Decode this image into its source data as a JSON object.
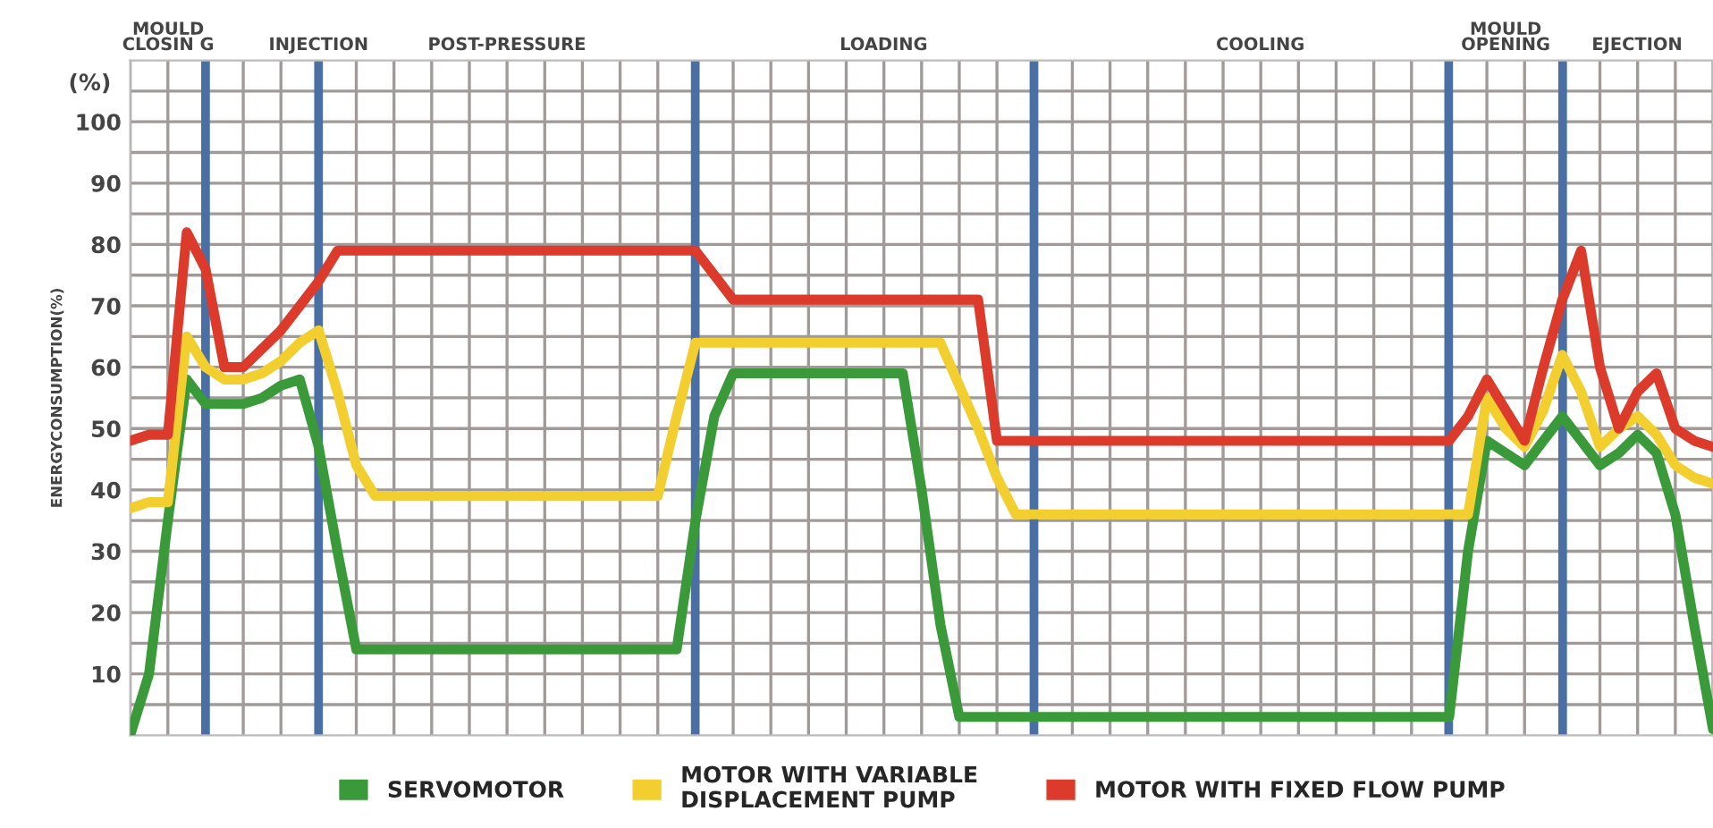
{
  "chart_data": {
    "type": "line",
    "ylabel": "ENERGYCONSUMPTION(%)",
    "annotations": [
      "(%)",
      "MOULD\nCLOSIN G",
      "INJECTION",
      "POST-PRESSURE",
      "LOADING",
      "COOLING",
      "MOULD\nOPENING",
      "EJECTION"
    ],
    "categories": [
      null,
      null,
      null,
      null,
      null,
      null,
      null,
      null,
      null,
      null,
      null,
      null,
      null,
      null,
      null,
      null,
      null,
      null,
      null,
      null,
      null,
      null,
      null,
      null,
      null,
      null,
      null,
      null,
      null,
      null,
      null,
      null,
      null,
      null,
      null,
      null,
      null,
      null,
      null,
      null,
      null,
      null,
      null,
      null,
      null,
      null,
      null,
      null,
      null,
      null,
      null,
      null,
      null,
      null,
      null,
      null,
      null,
      null,
      null,
      null,
      null,
      null,
      null,
      null,
      null,
      null,
      null,
      null,
      null,
      null,
      null,
      null,
      null,
      null,
      null,
      null,
      null,
      null,
      null,
      null,
      null,
      null,
      null,
      null,
      null
    ],
    "ylim": [
      0,
      110
    ],
    "yticks": [
      {
        "value": 5,
        "label": null
      },
      10,
      {
        "value": 15,
        "label": null
      },
      20,
      {
        "value": 25,
        "label": null
      },
      30,
      {
        "value": 35,
        "label": null
      },
      40,
      {
        "value": 45,
        "label": null
      },
      50,
      {
        "value": 55,
        "label": null
      },
      60,
      {
        "value": 65,
        "label": null
      },
      70,
      {
        "value": 75,
        "label": null
      },
      80,
      {
        "value": 85,
        "label": null
      },
      90,
      {
        "value": 95,
        "label": null
      },
      100,
      {
        "value": 105,
        "label": null
      }
    ],
    "grid": true,
    "legend": "bottom",
    "marker": "none",
    "line_style": "solid",
    "series": [
      {
        "name": "SERVOMOTOR",
        "color": "#3a9a3a",
        "values": [
          0,
          10,
          35,
          58,
          54,
          54,
          54,
          55,
          57,
          58,
          47,
          30,
          14,
          14,
          14,
          14,
          14,
          14,
          14,
          14,
          14,
          14,
          14,
          14,
          14,
          14,
          14,
          14,
          14,
          14,
          35,
          52,
          59,
          59,
          59,
          59,
          59,
          59,
          59,
          59,
          59,
          59,
          40,
          18,
          3,
          3,
          3,
          3,
          3,
          3,
          3,
          3,
          3,
          3,
          3,
          3,
          3,
          3,
          3,
          3,
          3,
          3,
          3,
          3,
          3,
          3,
          3,
          3,
          3,
          3,
          3,
          30,
          48,
          46,
          44,
          48,
          52,
          48,
          44,
          46,
          49,
          46,
          36,
          18,
          1
        ]
      },
      {
        "name": "MOTOR WITH VARIABLE\nDISPLACEMENT PUMP",
        "color": "#f2cf2e",
        "values": [
          37,
          38,
          38,
          65,
          60,
          58,
          58,
          59,
          61,
          64,
          66,
          56,
          44,
          39,
          39,
          39,
          39,
          39,
          39,
          39,
          39,
          39,
          39,
          39,
          39,
          39,
          39,
          39,
          39,
          52,
          64,
          64,
          64,
          64,
          64,
          64,
          64,
          64,
          64,
          64,
          64,
          64,
          64,
          64,
          57,
          50,
          42,
          36,
          36,
          36,
          36,
          36,
          36,
          36,
          36,
          36,
          36,
          36,
          36,
          36,
          36,
          36,
          36,
          36,
          36,
          36,
          36,
          36,
          36,
          36,
          36,
          36,
          55,
          50,
          47,
          53,
          62,
          56,
          47,
          50,
          52,
          49,
          44,
          42,
          41
        ]
      },
      {
        "name": "MOTOR WITH FIXED FLOW PUMP",
        "color": "#dc3a2b",
        "values": [
          48,
          49,
          49,
          82,
          76,
          60,
          60,
          63,
          66,
          70,
          74,
          79,
          79,
          79,
          79,
          79,
          79,
          79,
          79,
          79,
          79,
          79,
          79,
          79,
          79,
          79,
          79,
          79,
          79,
          79,
          79,
          75,
          71,
          71,
          71,
          71,
          71,
          71,
          71,
          71,
          71,
          71,
          71,
          71,
          71,
          71,
          48,
          48,
          48,
          48,
          48,
          48,
          48,
          48,
          48,
          48,
          48,
          48,
          48,
          48,
          48,
          48,
          48,
          48,
          48,
          48,
          48,
          48,
          48,
          48,
          48,
          52,
          58,
          53,
          48,
          60,
          71,
          79,
          60,
          50,
          56,
          59,
          50,
          48,
          47
        ]
      }
    ]
  }
}
